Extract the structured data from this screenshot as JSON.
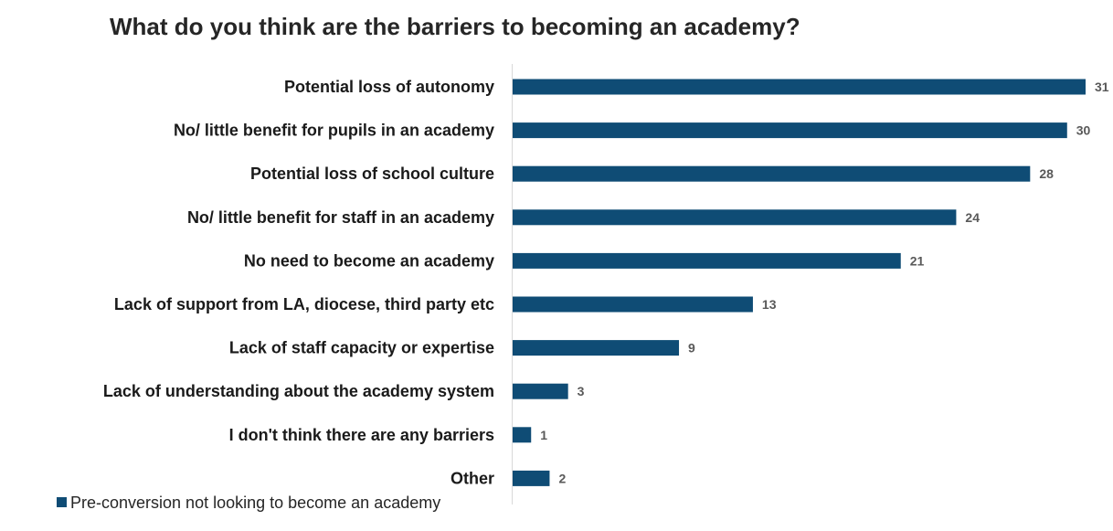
{
  "chart_data": {
    "type": "bar",
    "orientation": "horizontal",
    "title": "What do you think are the barriers to becoming an academy?",
    "categories": [
      "Potential loss of autonomy",
      "No/ little benefit for pupils in an academy",
      "Potential loss of school culture",
      "No/ little benefit for staff in an academy",
      "No need to become an academy",
      "Lack of support from LA, diocese, third party etc",
      "Lack of staff capacity or expertise",
      "Lack of understanding about the academy system",
      "I don't think there are any barriers",
      "Other"
    ],
    "series": [
      {
        "name": "Pre-conversion not looking to become an academy",
        "values": [
          31,
          30,
          28,
          24,
          21,
          13,
          9,
          3,
          1,
          2
        ],
        "color": "#0f4c75"
      }
    ],
    "xlim": [
      0,
      31
    ],
    "grid": false,
    "legend": "bottom-left",
    "data_labels": true
  }
}
